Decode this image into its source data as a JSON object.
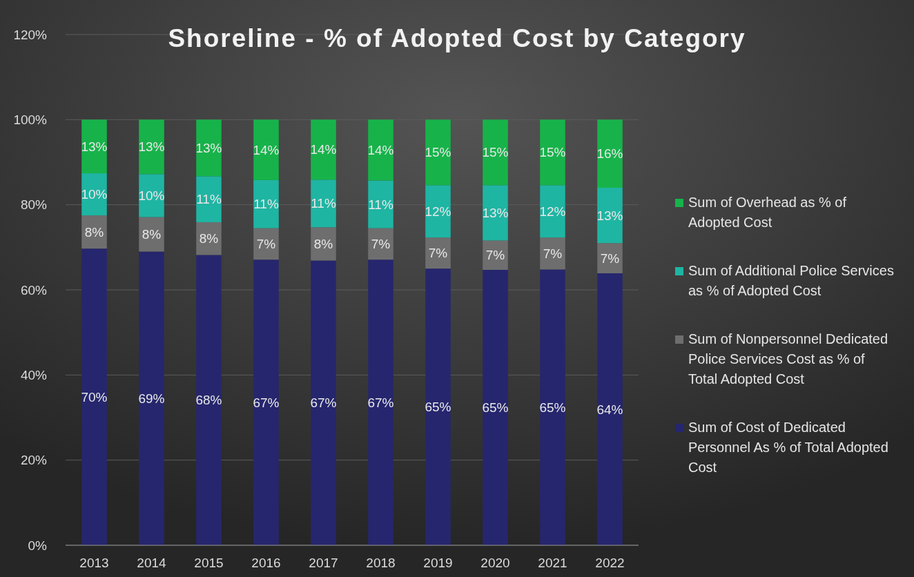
{
  "chart_data": {
    "type": "bar",
    "title": "Shoreline - % of Adopted Cost by Category",
    "stacked": true,
    "categories": [
      "2013",
      "2014",
      "2015",
      "2016",
      "2017",
      "2018",
      "2019",
      "2020",
      "2021",
      "2022"
    ],
    "series": [
      {
        "name": "Sum of Cost of Dedicated Personnel As % of Total Adopted Cost",
        "color": "#26266e",
        "values": [
          69.7,
          69.0,
          68.2,
          67.1,
          66.9,
          67.1,
          65.0,
          64.7,
          64.8,
          63.9
        ],
        "value_labels": [
          "70%",
          "69%",
          "68%",
          "67%",
          "67%",
          "67%",
          "65%",
          "65%",
          "65%",
          "64%"
        ]
      },
      {
        "name": "Sum of Nonpersonnel Dedicated Police Services Cost as % of Total Adopted Cost",
        "color": "#6e6e6e",
        "values": [
          7.8,
          8.1,
          7.7,
          7.4,
          7.8,
          7.4,
          7.3,
          6.9,
          7.5,
          7.1
        ],
        "value_labels": [
          "8%",
          "8%",
          "8%",
          "7%",
          "8%",
          "7%",
          "7%",
          "7%",
          "7%",
          "7%"
        ]
      },
      {
        "name": "Sum of Additional Police Services as % of Adopted Cost",
        "color": "#1fb5a3",
        "values": [
          9.9,
          10.1,
          10.8,
          11.3,
          11.2,
          11.2,
          12.3,
          13.0,
          12.3,
          13.0
        ],
        "value_labels": [
          "10%",
          "10%",
          "11%",
          "11%",
          "11%",
          "11%",
          "12%",
          "13%",
          "12%",
          "13%"
        ]
      },
      {
        "name": "Sum of Overhead as % of Adopted Cost",
        "color": "#17b34a",
        "values": [
          12.6,
          12.8,
          13.3,
          14.2,
          14.1,
          14.3,
          15.4,
          15.4,
          15.4,
          16.0
        ],
        "value_labels": [
          "13%",
          "13%",
          "13%",
          "14%",
          "14%",
          "14%",
          "15%",
          "15%",
          "15%",
          "16%"
        ]
      }
    ],
    "ylim": [
      0,
      120
    ],
    "yticks": [
      {
        "value": 0,
        "label": "0%"
      },
      {
        "value": 20,
        "label": "20%"
      },
      {
        "value": 40,
        "label": "40%"
      },
      {
        "value": 60,
        "label": "60%"
      },
      {
        "value": 80,
        "label": "80%"
      },
      {
        "value": 100,
        "label": "100%"
      },
      {
        "value": 120,
        "label": "120%"
      }
    ],
    "grid": "y",
    "legend": "right"
  }
}
